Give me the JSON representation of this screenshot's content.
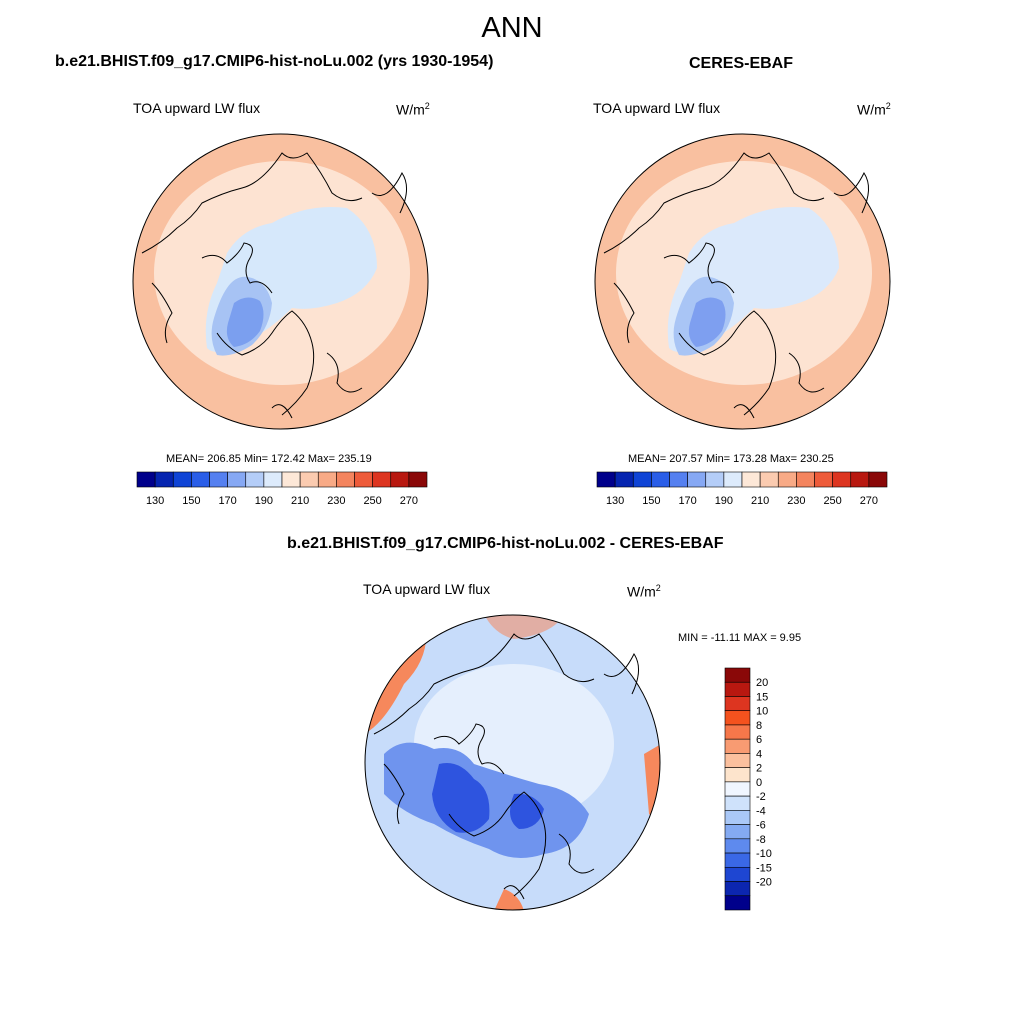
{
  "title": "ANN",
  "panels": {
    "model": {
      "title": "b.e21.BHIST.f09_g17.CMIP6-hist-noLu.002 (yrs 1930-1954)",
      "variable": "TOA upward LW flux",
      "units_base": "W/m",
      "units_exp": "2",
      "stats": "MEAN= 206.85  Min= 172.42  Max= 235.19"
    },
    "obs": {
      "title": "CERES-EBAF",
      "variable": "TOA upward LW flux",
      "units_base": "W/m",
      "units_exp": "2",
      "stats": "MEAN= 207.57  Min= 173.28  Max= 230.25"
    },
    "diff": {
      "title": "b.e21.BHIST.f09_g17.CMIP6-hist-noLu.002 - CERES-EBAF",
      "variable": "TOA upward LW flux",
      "units_base": "W/m",
      "units_exp": "2",
      "stats": "MIN = -11.11 MAX =   9.95"
    }
  },
  "colorbars": {
    "abs": {
      "colors": [
        "#00008b",
        "#0524b0",
        "#0f44d6",
        "#2a5ee8",
        "#5580f0",
        "#86a8f4",
        "#b4cdf8",
        "#ddebfc",
        "#fde8d8",
        "#fbcbb0",
        "#f8aa86",
        "#f4845e",
        "#ee5b3a",
        "#dd3520",
        "#b81810",
        "#8a0808"
      ],
      "labels": [
        "130",
        "150",
        "170",
        "190",
        "210",
        "230",
        "250",
        "270"
      ]
    },
    "diff": {
      "colors": [
        "#8a0808",
        "#b81810",
        "#dd3520",
        "#f4521e",
        "#f6774a",
        "#f89b72",
        "#fbc09e",
        "#fde4cc",
        "#f0f6ff",
        "#cfe2fb",
        "#aac8f7",
        "#84aaf2",
        "#5e8aee",
        "#3a68e6",
        "#1e46d2",
        "#0c26b0",
        "#00008b"
      ],
      "labels": [
        "20",
        "15",
        "10",
        "8",
        "6",
        "4",
        "2",
        "0",
        "-2",
        "-4",
        "-6",
        "-8",
        "-10",
        "-15",
        "-20"
      ]
    }
  },
  "maps": {
    "model": {
      "outer": "#f9c0a0",
      "mid": "#fde3d2",
      "polar": "#d6e8fb",
      "greenland": "#a7c3f4",
      "core": "#7b9fef",
      "warm": "#f4956c"
    },
    "obs": {
      "outer": "#f9c0a0",
      "mid": "#fde3d2",
      "polar": "#dbe9fb",
      "greenland": "#a9c5f5",
      "core": "#7e9ff0",
      "warm": "#f4956c"
    },
    "diff": {
      "outer": "#c7dcfa",
      "mid": "#e5effd",
      "polar": "#dbe9fb",
      "greenland": "#6f94ee",
      "core": "#2e54df",
      "warm": "#f6885c"
    }
  }
}
